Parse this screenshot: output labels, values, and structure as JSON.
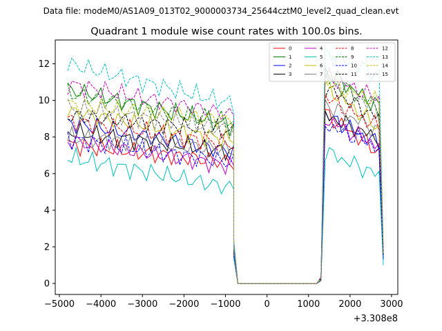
{
  "chart_data": {
    "type": "line",
    "suptitle": "Data file: modeM0/AS1A09_013T02_9000003734_25644cztM0_level2_quad_clean.evt",
    "title": "Quadrant 1 module wise count rates with 100.0s bins.",
    "xlabel": "",
    "ylabel": "",
    "offset_label": "+3.308e8",
    "xlim": [
      -5100,
      3150
    ],
    "ylim": [
      -0.6,
      13.3
    ],
    "xticks": [
      -5000,
      -4000,
      -3000,
      -2000,
      -1000,
      0,
      1000,
      2000,
      3000
    ],
    "xtick_labels": [
      "−5000",
      "−4000",
      "−3000",
      "−2000",
      "−1000",
      "0",
      "1000",
      "2000",
      "3000"
    ],
    "yticks": [
      0,
      2,
      4,
      6,
      8,
      10,
      12
    ],
    "ytick_labels": [
      "0",
      "2",
      "4",
      "6",
      "8",
      "10",
      "12"
    ],
    "legend_position": "top-right",
    "x_first_segment": {
      "start": -4800,
      "step": 100,
      "count": 41
    },
    "x_gap": [
      -800,
      -700,
      -600,
      -500,
      -400,
      -300,
      -200,
      -100,
      0,
      100,
      200,
      300,
      400,
      500,
      600,
      700,
      800,
      900,
      1000,
      1100,
      1200,
      1300
    ],
    "x_second_segment": {
      "start": 1400,
      "step": 100,
      "count": 15
    },
    "series": [
      {
        "name": "0",
        "color": "#ff0000",
        "dash": "solid",
        "level1": 7.6,
        "end1": 6.6,
        "level2": 9.3,
        "end2": 7.0,
        "trail": 1.5
      },
      {
        "name": "1",
        "color": "#008000",
        "dash": "solid",
        "level1": 10.6,
        "end1": 8.6,
        "level2": 11.6,
        "end2": 9.5,
        "trail": 1.6
      },
      {
        "name": "2",
        "color": "#0000ff",
        "dash": "solid",
        "level1": 8.8,
        "end1": 7.2,
        "level2": 9.2,
        "end2": 7.5,
        "trail": 1.3
      },
      {
        "name": "3",
        "color": "#000000",
        "dash": "solid",
        "level1": 8.3,
        "end1": 7.2,
        "level2": 9.2,
        "end2": 7.8,
        "trail": 1.5
      },
      {
        "name": "4",
        "color": "#c000c0",
        "dash": "solid",
        "level1": 7.8,
        "end1": 6.4,
        "level2": 9.0,
        "end2": 7.4,
        "trail": 1.4
      },
      {
        "name": "5",
        "color": "#00bfbf",
        "dash": "solid",
        "level1": 6.9,
        "end1": 5.2,
        "level2": 7.2,
        "end2": 5.8,
        "trail": 1.0
      },
      {
        "name": "6",
        "color": "#bfbf00",
        "dash": "solid",
        "level1": 9.4,
        "end1": 7.8,
        "level2": 10.8,
        "end2": 8.3,
        "trail": 1.6
      },
      {
        "name": "7",
        "color": "#808080",
        "dash": "solid",
        "level1": 8.0,
        "end1": 7.3,
        "level2": 9.8,
        "end2": 8.2,
        "trail": 1.5
      },
      {
        "name": "8",
        "color": "#ff0000",
        "dash": "dashed",
        "level1": 8.9,
        "end1": 7.6,
        "level2": 10.2,
        "end2": 8.4,
        "trail": 1.6
      },
      {
        "name": "9",
        "color": "#008000",
        "dash": "dashed",
        "level1": 10.4,
        "end1": 8.8,
        "level2": 11.2,
        "end2": 9.5,
        "trail": 1.7
      },
      {
        "name": "10",
        "color": "#0000ff",
        "dash": "dashed",
        "level1": 7.9,
        "end1": 6.6,
        "level2": 8.7,
        "end2": 7.3,
        "trail": 1.4
      },
      {
        "name": "11",
        "color": "#000000",
        "dash": "dashed",
        "level1": 9.2,
        "end1": 8.3,
        "level2": 10.7,
        "end2": 8.9,
        "trail": 1.6
      },
      {
        "name": "12",
        "color": "#c000c0",
        "dash": "dashed",
        "level1": 10.9,
        "end1": 9.2,
        "level2": 11.3,
        "end2": 10.0,
        "trail": 1.8
      },
      {
        "name": "13",
        "color": "#00bfbf",
        "dash": "dashed",
        "level1": 12.0,
        "end1": 9.8,
        "level2": 12.6,
        "end2": 11.3,
        "trail": 2.0
      },
      {
        "name": "14",
        "color": "#bfbf00",
        "dash": "dashed",
        "level1": 9.8,
        "end1": 8.9,
        "level2": 11.0,
        "end2": 9.8,
        "trail": 1.7
      },
      {
        "name": "15",
        "color": "#808080",
        "dash": "dashed",
        "level1": 9.6,
        "end1": 8.4,
        "level2": 11.4,
        "end2": 9.2,
        "trail": 1.6
      }
    ]
  }
}
